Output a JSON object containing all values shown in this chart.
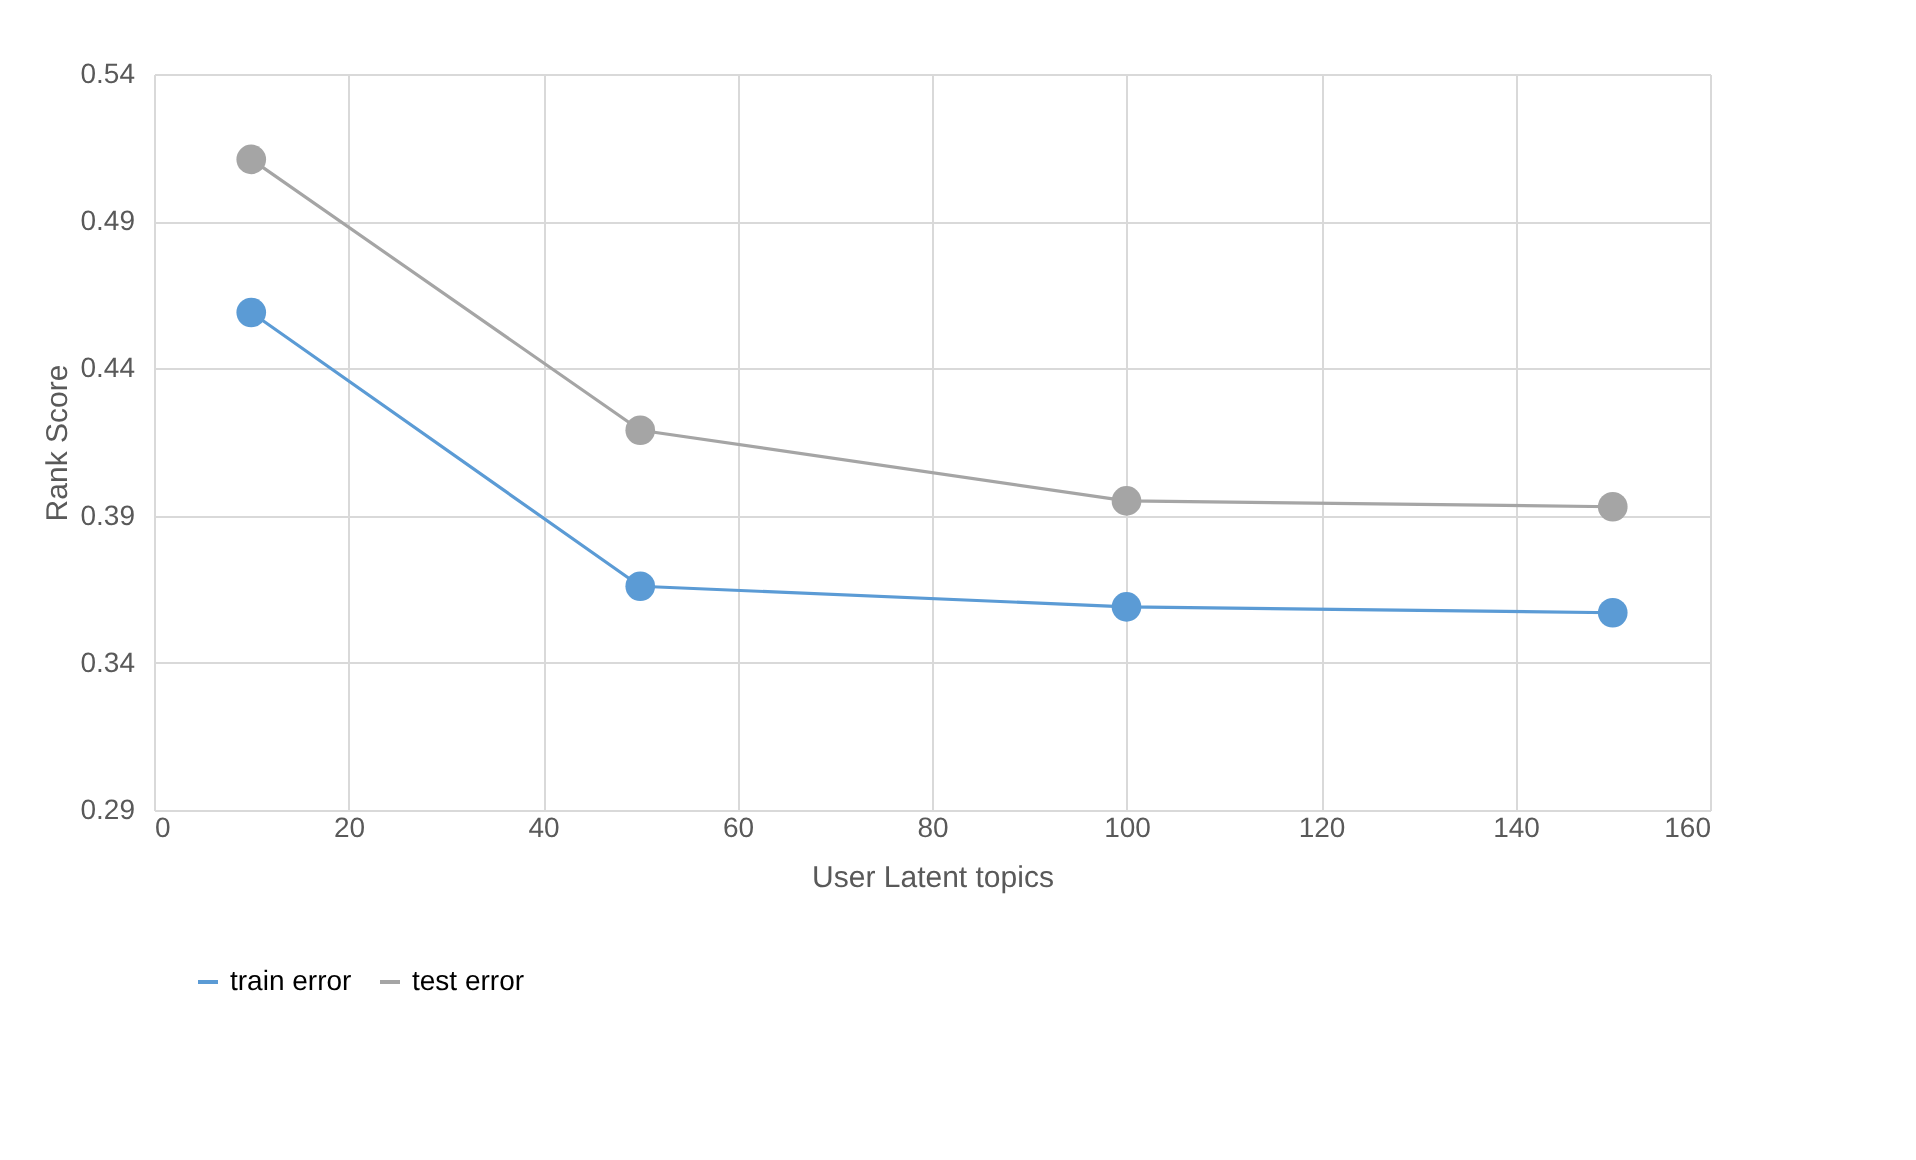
{
  "chart_data": {
    "type": "line",
    "xlabel": "User Latent topics",
    "ylabel": "Rank Score",
    "x": [
      10,
      50,
      100,
      150
    ],
    "series": [
      {
        "name": "train error",
        "color": "#5b9bd5",
        "values": [
          0.459,
          0.366,
          0.359,
          0.357
        ]
      },
      {
        "name": "test error",
        "color": "#a5a5a5",
        "values": [
          0.511,
          0.419,
          0.395,
          0.393
        ]
      }
    ],
    "xlim": [
      0,
      160
    ],
    "xticks": [
      0,
      20,
      40,
      60,
      80,
      100,
      120,
      140,
      160
    ],
    "ylim": [
      0.29,
      0.54
    ],
    "yticks": [
      0.29,
      0.34,
      0.39,
      0.44,
      0.49,
      0.54
    ],
    "grid": true,
    "legend": "bottom",
    "marker": "circle",
    "line_style": "solid"
  }
}
